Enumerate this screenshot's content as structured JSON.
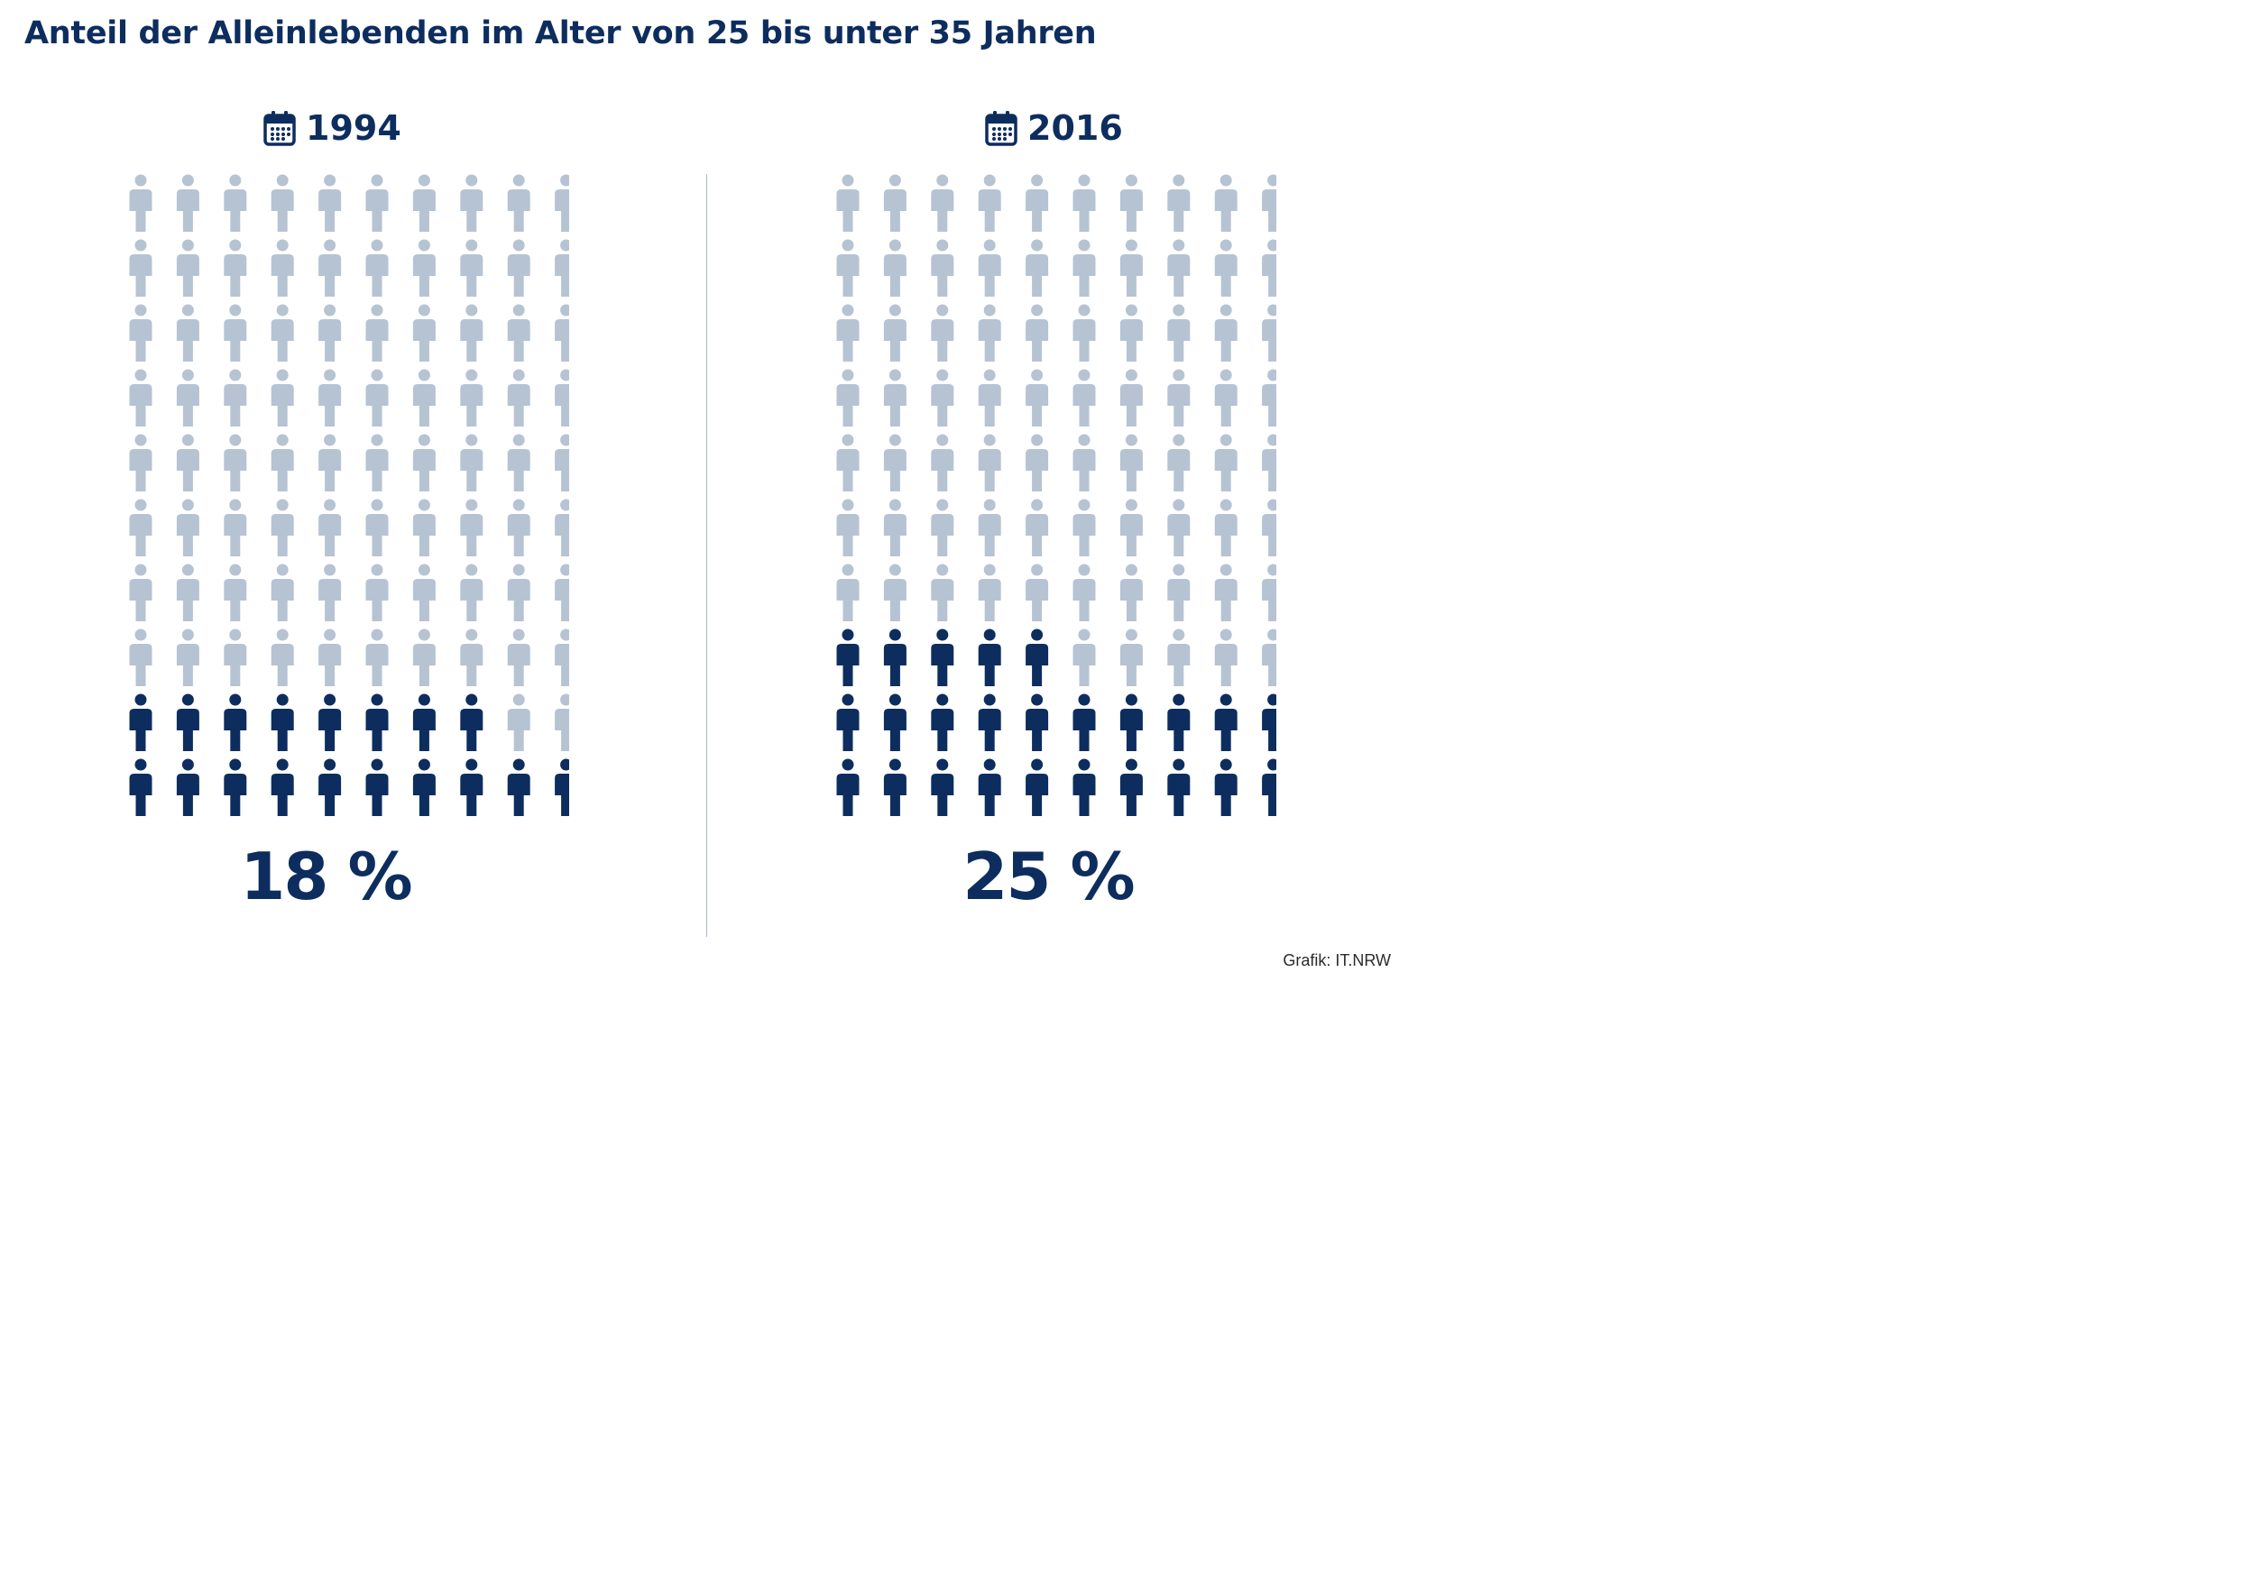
{
  "title": "Anteil der Alleinlebenden im Alter von 25 bis unter 35 Jahren",
  "source": "Grafik: IT.NRW",
  "colors": {
    "highlight": "#0d2d5e",
    "base": "#b6c3d3"
  },
  "chart_data": [
    {
      "type": "pictogram",
      "label": "1994",
      "value": 18,
      "value_label": "18 %",
      "total_icons": 100,
      "grid": [
        10,
        10
      ],
      "icon": "person-icon",
      "calendar_icon": "calendar-icon"
    },
    {
      "type": "pictogram",
      "label": "2016",
      "value": 25,
      "value_label": "25 %",
      "total_icons": 100,
      "grid": [
        10,
        10
      ],
      "icon": "person-icon",
      "calendar_icon": "calendar-icon"
    }
  ]
}
